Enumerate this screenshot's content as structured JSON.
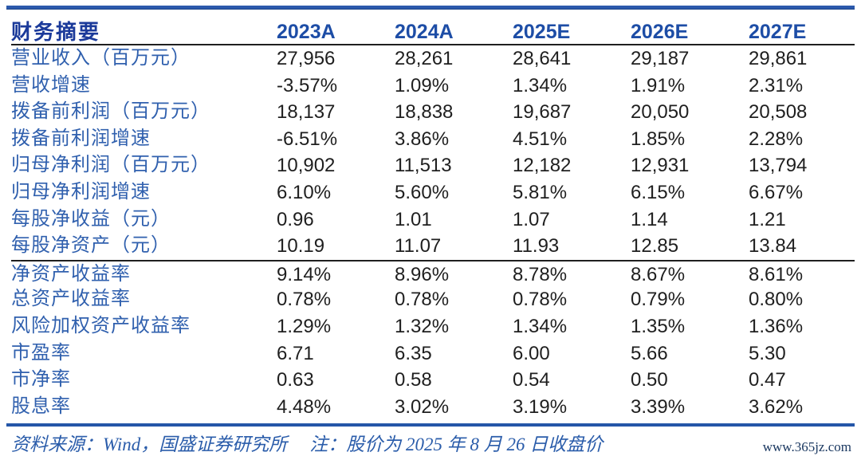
{
  "colors": {
    "top_rule": "#2b59ac",
    "bottom_rule": "#2456a8",
    "header_label_text": "#1b3a9a",
    "year_header_text": "#1d4da6",
    "row_label_text": "#3060ae",
    "value_text": "#1f1f1f",
    "divider_line": "#1f1f1f",
    "footer_text": "#2a5caa",
    "watermark_text": "#18365f"
  },
  "table": {
    "header": {
      "label": "财务摘要",
      "columns": [
        "2023A",
        "2024A",
        "2025E",
        "2026E",
        "2027E"
      ]
    },
    "rows": [
      {
        "label": "营业收入（百万元）",
        "values": [
          "27,956",
          "28,261",
          "28,641",
          "29,187",
          "29,861"
        ]
      },
      {
        "label": "营收增速",
        "values": [
          "-3.57%",
          "1.09%",
          "1.34%",
          "1.91%",
          "2.31%"
        ]
      },
      {
        "label": "拨备前利润（百万元）",
        "values": [
          "18,137",
          "18,838",
          "19,687",
          "20,050",
          "20,508"
        ]
      },
      {
        "label": "拨备前利润增速",
        "values": [
          "-6.51%",
          "3.86%",
          "4.51%",
          "1.85%",
          "2.28%"
        ]
      },
      {
        "label": "归母净利润（百万元）",
        "values": [
          "10,902",
          "11,513",
          "12,182",
          "12,931",
          "13,794"
        ]
      },
      {
        "label": "归母净利润增速",
        "values": [
          "6.10%",
          "5.60%",
          "5.81%",
          "6.15%",
          "6.67%"
        ]
      },
      {
        "label": "每股净收益（元）",
        "values": [
          "0.96",
          "1.01",
          "1.07",
          "1.14",
          "1.21"
        ]
      },
      {
        "label": "每股净资产（元）",
        "values": [
          "10.19",
          "11.07",
          "11.93",
          "12.85",
          "13.84"
        ]
      },
      {
        "label": "净资产收益率",
        "values": [
          "9.14%",
          "8.96%",
          "8.78%",
          "8.67%",
          "8.61%"
        ]
      },
      {
        "label": "总资产收益率",
        "values": [
          "0.78%",
          "0.78%",
          "0.78%",
          "0.79%",
          "0.80%"
        ]
      },
      {
        "label": "风险加权资产收益率",
        "values": [
          "1.29%",
          "1.32%",
          "1.34%",
          "1.35%",
          "1.36%"
        ]
      },
      {
        "label": "市盈率",
        "values": [
          "6.71",
          "6.35",
          "6.00",
          "5.66",
          "5.30"
        ]
      },
      {
        "label": "市净率",
        "values": [
          "0.63",
          "0.58",
          "0.54",
          "0.50",
          "0.47"
        ]
      },
      {
        "label": "股息率",
        "values": [
          "4.48%",
          "3.02%",
          "3.19%",
          "3.39%",
          "3.62%"
        ]
      }
    ]
  },
  "footer": {
    "source_note": "资料来源：Wind，国盛证券研究所",
    "price_note": "注：股价为 2025 年 8 月 26 日收盘价",
    "watermark": "www.365jz.com"
  }
}
